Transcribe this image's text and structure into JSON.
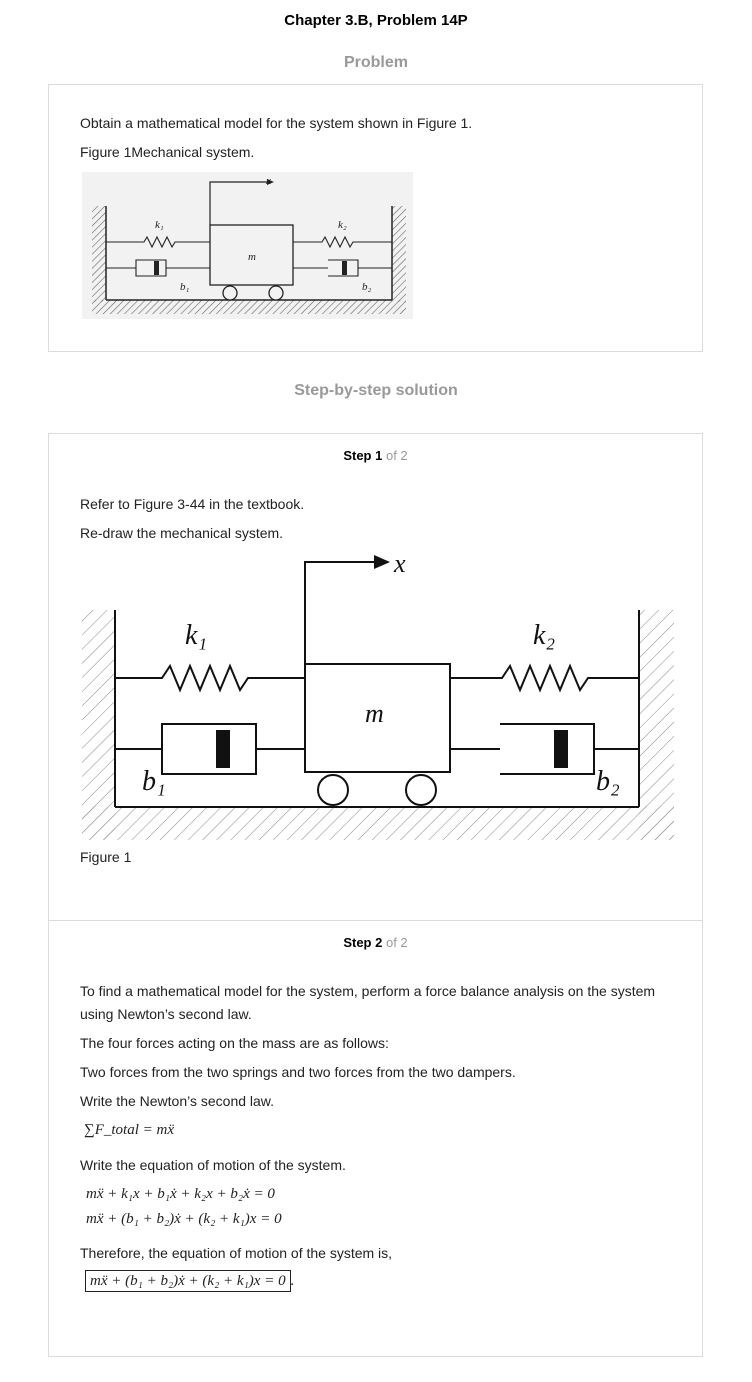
{
  "header": {
    "chapter_title": "Chapter 3.B, Problem 14P",
    "problem_heading": "Problem",
    "solution_heading": "Step-by-step solution"
  },
  "problem": {
    "text": "Obtain a mathematical model for the system shown in Figure 1.",
    "figure_caption": "Figure 1Mechanical system.",
    "figure_labels": {
      "x": "x",
      "k1": "k₁",
      "k2": "k₂",
      "m": "m",
      "b1": "b₁",
      "b2": "b₂"
    }
  },
  "steps": [
    {
      "label": "Step 1",
      "of": "of 2",
      "lines": [
        "Refer to Figure 3-44 in the textbook.",
        "Re-draw the mechanical system."
      ],
      "figure_caption": "Figure 1",
      "figure_labels": {
        "x": "x",
        "k1": "k₁",
        "k2": "k₂",
        "m": "m",
        "b1": "b₁",
        "b2": "b₂"
      }
    },
    {
      "label": "Step 2",
      "of": "of 2",
      "intro": "To find a mathematical model for the system, perform a force balance analysis on the system using Newton’s second law.",
      "forces_line": "The four forces acting on the mass are as follows:",
      "forces_detail": "Two forces from the two springs and two forces from the two dampers.",
      "newton_line": "Write the Newton’s second law.",
      "eq_newton": "∑F_total = mẍ",
      "eom_line": "Write the equation of motion of the system.",
      "eq_1": "mẍ + k₁x + b₁ẋ + k₂x + b₂ẋ = 0",
      "eq_2": "mẍ + (b₁ + b₂)ẋ + (k₂ + k₁)x = 0",
      "conclusion_line": "Therefore, the equation of motion of the system is,",
      "eq_final": "mẍ + (b₁ + b₂)ẋ + (k₂ + k₁)x = 0",
      "eq_final_suffix": "."
    }
  ]
}
